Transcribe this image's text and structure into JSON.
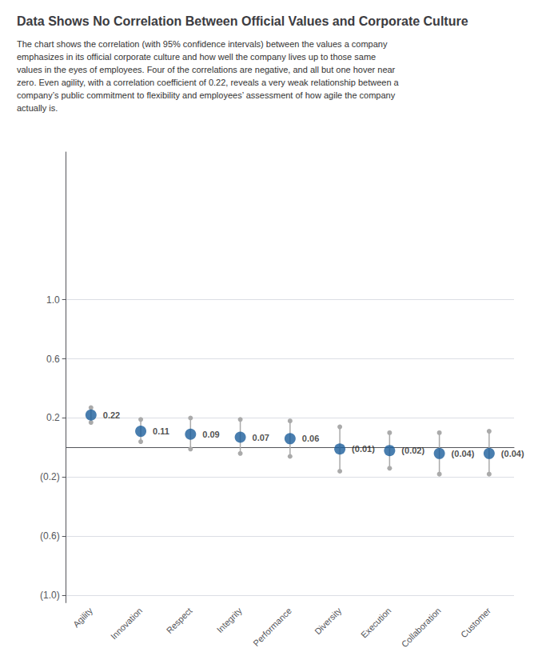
{
  "chart_data": {
    "type": "scatter",
    "title": "Data Shows No Correlation Between Official Values and Corporate Culture",
    "subtitle": "The chart shows the correlation (with 95% confidence intervals) between the values a company\nemphasizes in its official corporate culture and how well the company lives up to those same\nvalues in the eyes of employees. Four of the correlations are negative, and all but one hover near\nzero. Even agility, with a correlation coefficient of 0.22, reveals a very weak relationship between a\ncompany’s public commitment to flexibility and employees’ assessment of how agile the company\nactually is.",
    "categories": [
      "Agility",
      "Innovation",
      "Respect",
      "Integrity",
      "Performance",
      "Diversity",
      "Execution",
      "Collaboration",
      "Customer"
    ],
    "values": [
      0.22,
      0.11,
      0.09,
      0.07,
      0.06,
      -0.01,
      -0.02,
      -0.04,
      -0.04
    ],
    "value_labels": [
      "0.22",
      "0.11",
      "0.09",
      "0.07",
      "0.06",
      "(0.01)",
      "(0.02)",
      "(0.04)",
      "(0.04)"
    ],
    "ci_upper": [
      0.27,
      0.19,
      0.2,
      0.19,
      0.18,
      0.14,
      0.1,
      0.1,
      0.11
    ],
    "ci_lower": [
      0.17,
      0.04,
      -0.01,
      -0.04,
      -0.06,
      -0.16,
      -0.14,
      -0.18,
      -0.18
    ],
    "color": "#1B5E9B",
    "data_labels": true,
    "ylim": [
      -1.05,
      2.0
    ],
    "yticks": [
      {
        "value": 1.0,
        "label": "1.0"
      },
      0.6,
      0.2,
      {
        "value": -0.2,
        "label": "(0.2)"
      },
      {
        "value": -0.6,
        "label": "(0.6)"
      },
      {
        "value": -1.0,
        "label": "(1.0)"
      }
    ],
    "grid": true
  }
}
